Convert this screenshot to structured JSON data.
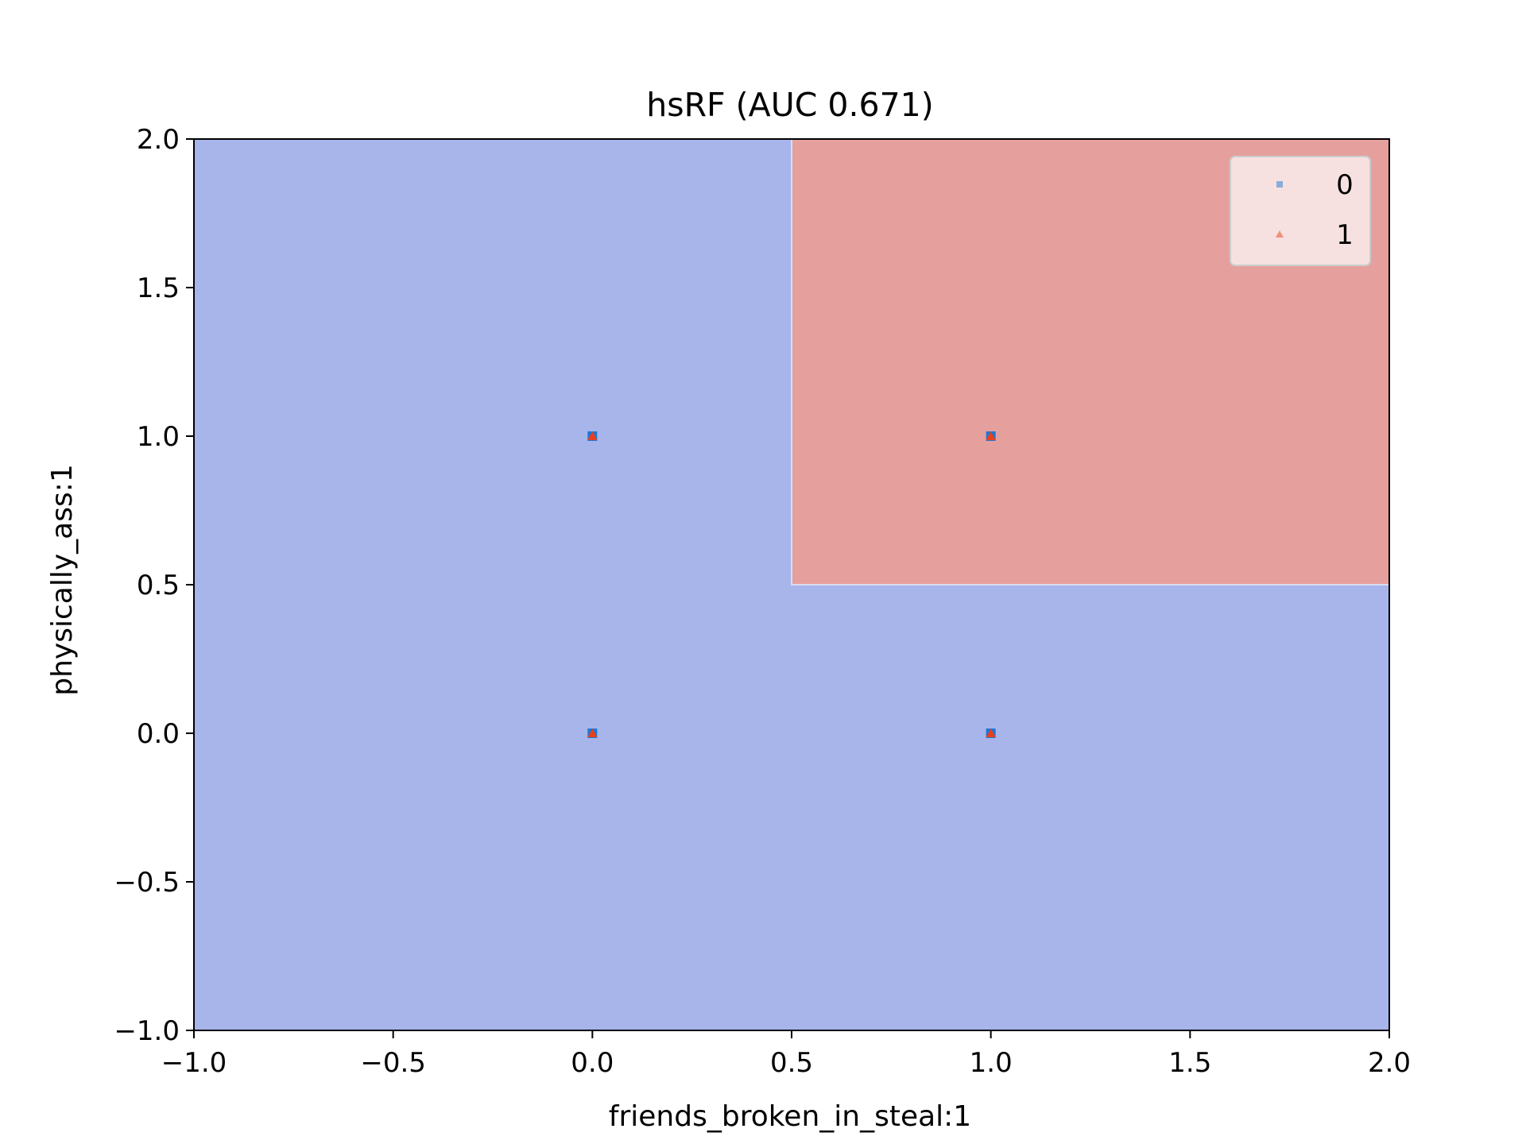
{
  "chart_data": {
    "type": "scatter",
    "title": "hsRF (AUC 0.671)",
    "xlabel": "friends_broken_in_steal:1",
    "ylabel": "physically_ass:1",
    "xlim": [
      -1.0,
      2.0
    ],
    "ylim": [
      -1.0,
      2.0
    ],
    "xticks": [
      "−1.0",
      "−0.5",
      "0.0",
      "0.5",
      "1.0",
      "1.5",
      "2.0"
    ],
    "yticks": [
      "−1.0",
      "−0.5",
      "0.0",
      "0.5",
      "1.0",
      "1.5",
      "2.0"
    ],
    "grid": false,
    "legend_position": "top-right",
    "decision_regions": [
      {
        "class": "1",
        "x_range": [
          0.5,
          2.0
        ],
        "y_range": [
          0.5,
          2.0
        ],
        "color": "#e5a09d"
      }
    ],
    "background_region_color": "#a7b5ea",
    "series": [
      {
        "name": "0",
        "marker": "square",
        "color": "#1f77d4",
        "points": [
          [
            0,
            0
          ],
          [
            0,
            1
          ],
          [
            1,
            0
          ],
          [
            1,
            1
          ]
        ]
      },
      {
        "name": "1",
        "marker": "triangle",
        "color": "#e8401c",
        "points": [
          [
            0,
            0
          ],
          [
            0,
            1
          ],
          [
            1,
            0
          ],
          [
            1,
            1
          ]
        ]
      }
    ]
  }
}
